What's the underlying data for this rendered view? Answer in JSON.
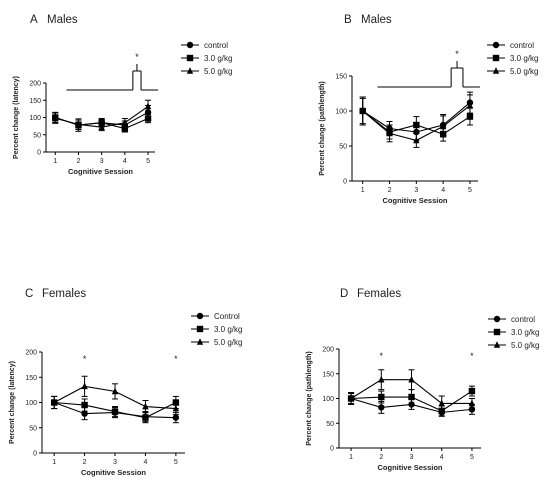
{
  "chart_data": [
    {
      "type": "line",
      "panel_label": "A",
      "title": "Males",
      "xlabel": "Cognitive Session",
      "ylabel": "Percent change (latency)",
      "x": [
        1,
        2,
        3,
        4,
        5
      ],
      "xlim": [
        0.6,
        5.3
      ],
      "ylim": [
        0,
        200
      ],
      "yticks": [
        0,
        50,
        100,
        150,
        200
      ],
      "grid": false,
      "legend_position": "top-right",
      "series": [
        {
          "name": "control",
          "marker": "circle",
          "values": [
            100,
            78,
            85,
            78,
            115
          ],
          "errors": [
            15,
            18,
            12,
            12,
            20
          ]
        },
        {
          "name": "3.0 g/kg",
          "marker": "square",
          "values": [
            100,
            78,
            85,
            68,
            97
          ],
          "errors": [
            13,
            12,
            10,
            10,
            12
          ]
        },
        {
          "name": "5.0 g/kg",
          "marker": "triangle",
          "values": [
            98,
            80,
            72,
            85,
            132
          ],
          "errors": [
            15,
            15,
            10,
            12,
            18
          ]
        }
      ],
      "annotations": [
        {
          "text": "*",
          "type": "bracket",
          "x_left": [
            2,
            4
          ],
          "x_right": [
            5
          ]
        }
      ]
    },
    {
      "type": "line",
      "panel_label": "B",
      "title": "Males",
      "xlabel": "Cognitive Session",
      "ylabel": "Percent change (pathlength)",
      "x": [
        1,
        2,
        3,
        4,
        5
      ],
      "xlim": [
        0.6,
        5.3
      ],
      "ylim": [
        0,
        150
      ],
      "yticks": [
        0,
        50,
        100,
        150
      ],
      "grid": false,
      "legend_position": "top-right",
      "series": [
        {
          "name": "control",
          "marker": "circle",
          "values": [
            100,
            75,
            70,
            80,
            112
          ],
          "errors": [
            20,
            10,
            12,
            15,
            15
          ]
        },
        {
          "name": "3.0 g/kg",
          "marker": "square",
          "values": [
            100,
            70,
            80,
            67,
            92
          ],
          "errors": [
            18,
            10,
            12,
            10,
            12
          ]
        },
        {
          "name": "5.0 g/kg",
          "marker": "triangle",
          "values": [
            100,
            68,
            58,
            78,
            108
          ],
          "errors": [
            20,
            12,
            10,
            15,
            15
          ]
        }
      ],
      "annotations": [
        {
          "text": "*",
          "type": "bracket",
          "x_left": [
            2,
            4
          ],
          "x_right": [
            5
          ]
        }
      ]
    },
    {
      "type": "line",
      "panel_label": "C",
      "title": "Females",
      "xlabel": "Cognitive Session",
      "ylabel": "Percent change (latency)",
      "x": [
        1,
        2,
        3,
        4,
        5
      ],
      "xlim": [
        0.6,
        5.3
      ],
      "ylim": [
        0,
        200
      ],
      "yticks": [
        0,
        50,
        100,
        150,
        200
      ],
      "grid": false,
      "legend_position": "top-right",
      "series": [
        {
          "name": "Control",
          "marker": "circle",
          "values": [
            100,
            78,
            80,
            72,
            70
          ],
          "errors": [
            12,
            12,
            10,
            10,
            10
          ]
        },
        {
          "name": "3.0 g/kg",
          "marker": "square",
          "values": [
            100,
            95,
            82,
            70,
            100
          ],
          "errors": [
            12,
            12,
            10,
            10,
            12
          ]
        },
        {
          "name": "5.0 g/kg",
          "marker": "triangle",
          "values": [
            100,
            132,
            122,
            92,
            88
          ],
          "errors": [
            12,
            20,
            15,
            12,
            12
          ]
        }
      ],
      "annotations": [
        {
          "text": "*",
          "type": "star",
          "x": 2
        },
        {
          "text": "*",
          "type": "star",
          "x": 5
        }
      ]
    },
    {
      "type": "line",
      "panel_label": "D",
      "title": "Females",
      "xlabel": "Cognitive Session",
      "ylabel": "Percent change (pathlength)",
      "x": [
        1,
        2,
        3,
        4,
        5
      ],
      "xlim": [
        0.6,
        5.3
      ],
      "ylim": [
        0,
        200
      ],
      "yticks": [
        0,
        50,
        100,
        150,
        200
      ],
      "grid": false,
      "legend_position": "top-right",
      "series": [
        {
          "name": "control",
          "marker": "circle",
          "values": [
            100,
            82,
            88,
            72,
            78
          ],
          "errors": [
            10,
            12,
            10,
            8,
            10
          ]
        },
        {
          "name": "3.0 g/kg",
          "marker": "square",
          "values": [
            100,
            103,
            103,
            75,
            115
          ],
          "errors": [
            12,
            12,
            15,
            10,
            10
          ]
        },
        {
          "name": "5.0 g/kg",
          "marker": "triangle",
          "values": [
            100,
            138,
            138,
            90,
            90
          ],
          "errors": [
            12,
            20,
            20,
            15,
            10
          ]
        }
      ],
      "annotations": [
        {
          "text": "*",
          "type": "star",
          "x": 2
        },
        {
          "text": "*",
          "type": "star",
          "x": 5
        }
      ]
    }
  ]
}
